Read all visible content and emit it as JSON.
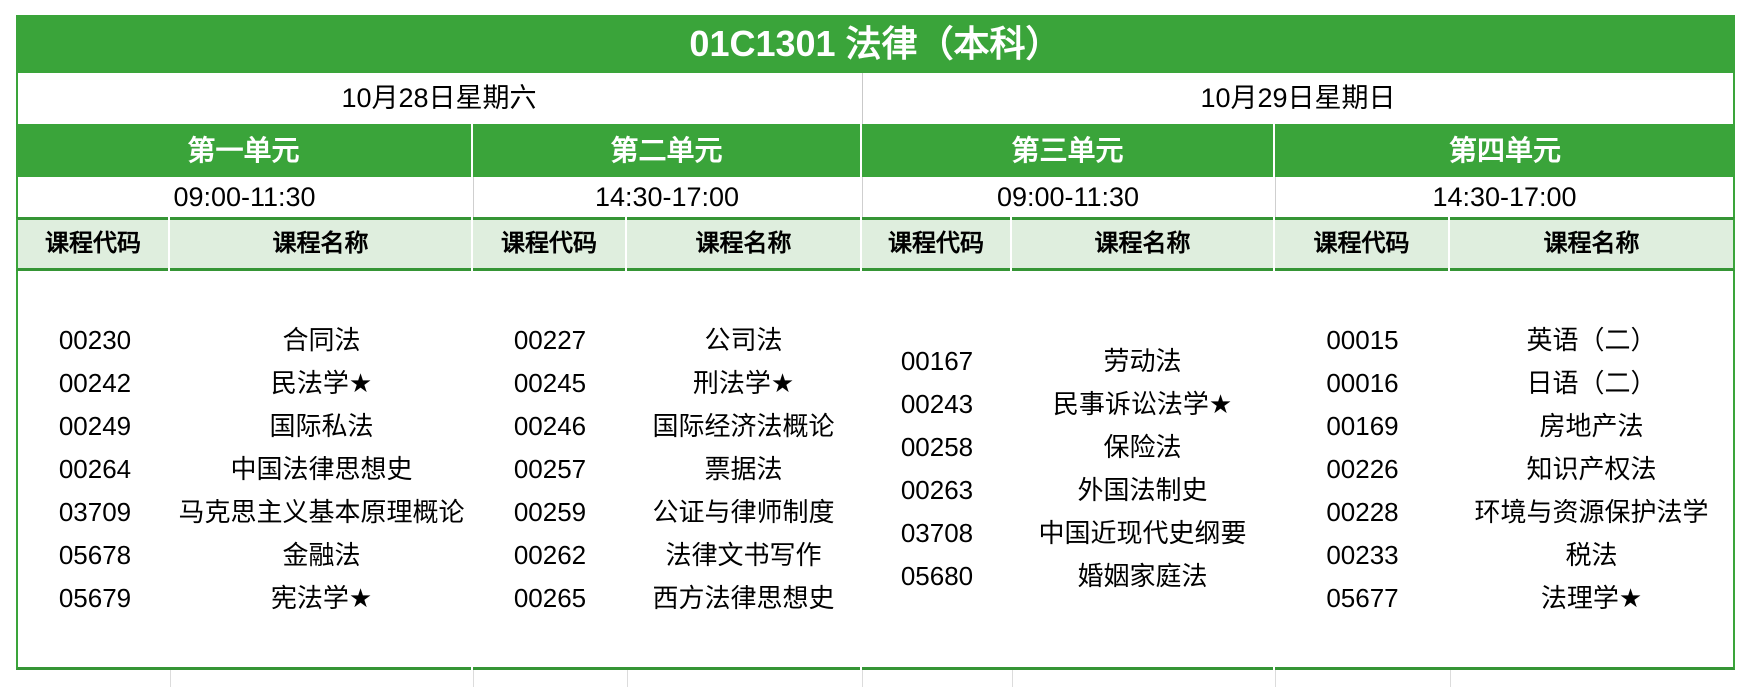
{
  "title": "01C1301 法律（本科）",
  "colors": {
    "band_green": "#3AA43A",
    "line_green": "#359535",
    "header_row_bg": "#DFEEDE",
    "text_on_green": "#FFFFFF",
    "body_text": "#000000"
  },
  "column_headers": {
    "code": "课程代码",
    "name": "课程名称"
  },
  "days": [
    {
      "date": "10月28日星期六"
    },
    {
      "date": "10月29日星期日"
    }
  ],
  "units": [
    {
      "name": "第一单元",
      "time": "09:00-11:30",
      "courses": [
        {
          "code": "00230",
          "name": "合同法"
        },
        {
          "code": "00242",
          "name": "民法学★"
        },
        {
          "code": "00249",
          "name": "国际私法"
        },
        {
          "code": "00264",
          "name": "中国法律思想史"
        },
        {
          "code": "03709",
          "name": "马克思主义基本原理概论"
        },
        {
          "code": "05678",
          "name": "金融法"
        },
        {
          "code": "05679",
          "name": "宪法学★"
        }
      ]
    },
    {
      "name": "第二单元",
      "time": "14:30-17:00",
      "courses": [
        {
          "code": "00227",
          "name": "公司法"
        },
        {
          "code": "00245",
          "name": "刑法学★"
        },
        {
          "code": "00246",
          "name": "国际经济法概论"
        },
        {
          "code": "00257",
          "name": "票据法"
        },
        {
          "code": "00259",
          "name": "公证与律师制度"
        },
        {
          "code": "00262",
          "name": "法律文书写作"
        },
        {
          "code": "00265",
          "name": "西方法律思想史"
        }
      ]
    },
    {
      "name": "第三单元",
      "time": "09:00-11:30",
      "courses": [
        {
          "code": "00167",
          "name": "劳动法"
        },
        {
          "code": "00243",
          "name": "民事诉讼法学★"
        },
        {
          "code": "00258",
          "name": "保险法"
        },
        {
          "code": "00263",
          "name": "外国法制史"
        },
        {
          "code": "03708",
          "name": "中国近现代史纲要"
        },
        {
          "code": "05680",
          "name": "婚姻家庭法"
        }
      ]
    },
    {
      "name": "第四单元",
      "time": "14:30-17:00",
      "courses": [
        {
          "code": "00015",
          "name": "英语（二）"
        },
        {
          "code": "00016",
          "name": "日语（二）"
        },
        {
          "code": "00169",
          "name": "房地产法"
        },
        {
          "code": "00226",
          "name": "知识产权法"
        },
        {
          "code": "00228",
          "name": "环境与资源保护法学"
        },
        {
          "code": "00233",
          "name": "税法"
        },
        {
          "code": "05677",
          "name": "法理学★"
        }
      ]
    }
  ]
}
